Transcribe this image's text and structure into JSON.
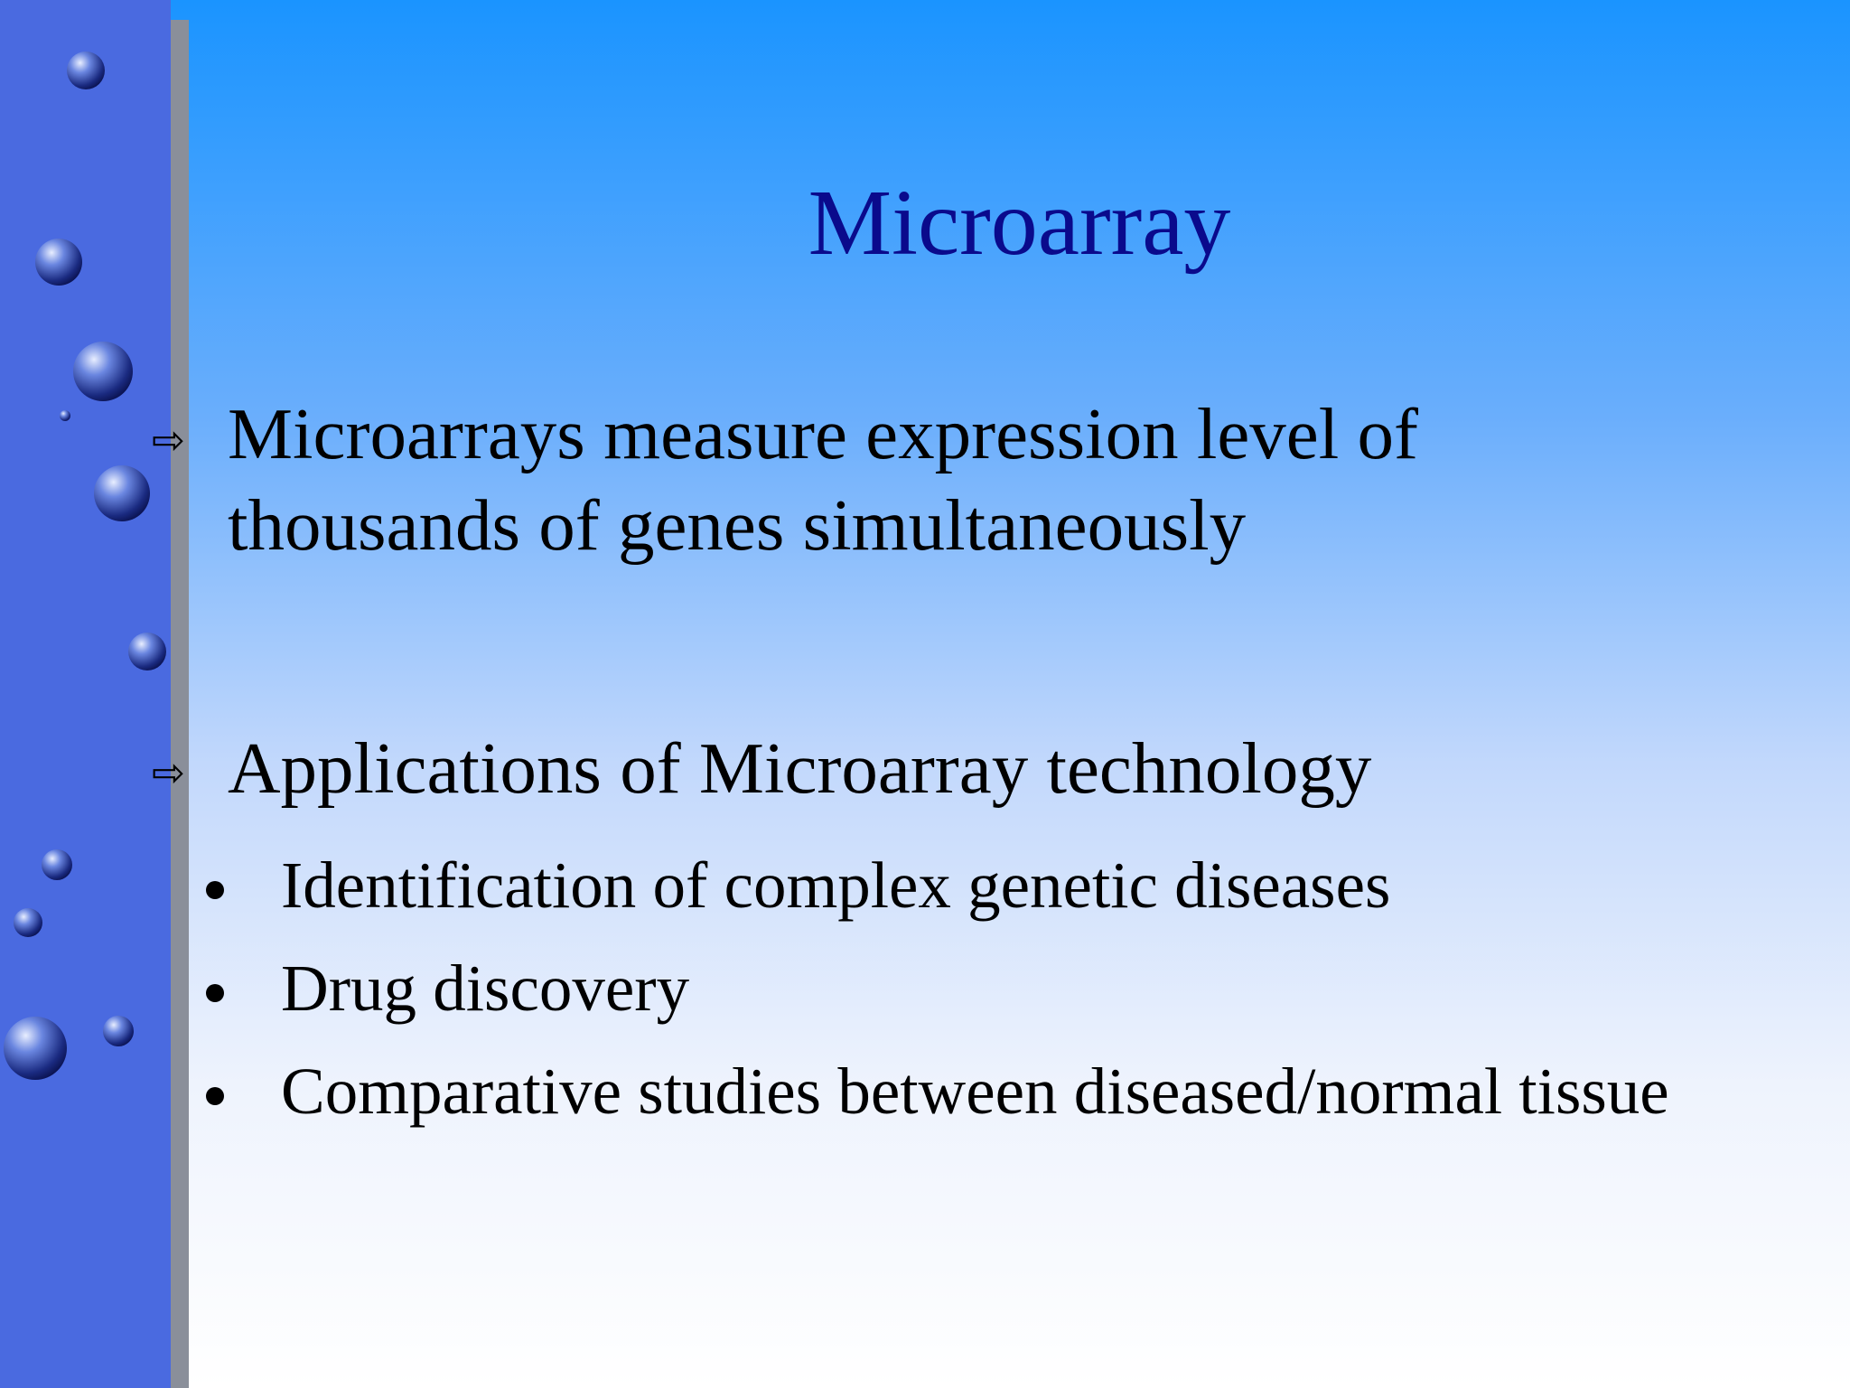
{
  "slide": {
    "title": "Microarray",
    "bullets": [
      "Microarrays measure expression level of thousands of genes simultaneously",
      "Applications of Microarray technology"
    ],
    "sub_items": [
      "Identification of complex genetic diseases",
      "Drug discovery",
      "Comparative studies between diseased/normal tissue"
    ]
  }
}
